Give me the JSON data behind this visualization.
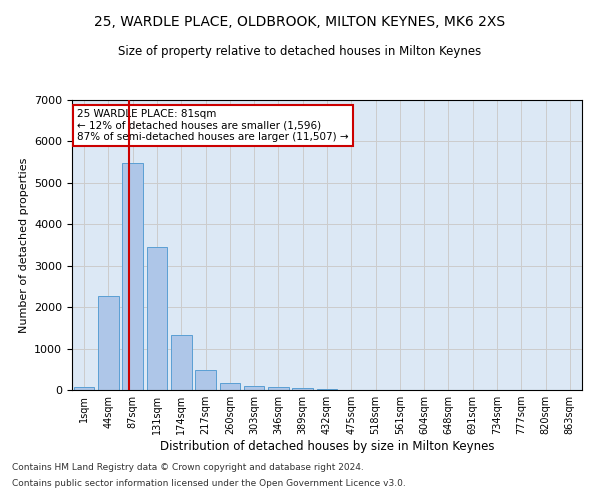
{
  "title1": "25, WARDLE PLACE, OLDBROOK, MILTON KEYNES, MK6 2XS",
  "title2": "Size of property relative to detached houses in Milton Keynes",
  "xlabel": "Distribution of detached houses by size in Milton Keynes",
  "ylabel": "Number of detached properties",
  "footnote1": "Contains HM Land Registry data © Crown copyright and database right 2024.",
  "footnote2": "Contains public sector information licensed under the Open Government Licence v3.0.",
  "annotation_title": "25 WARDLE PLACE: 81sqm",
  "annotation_line1": "← 12% of detached houses are smaller (1,596)",
  "annotation_line2": "87% of semi-detached houses are larger (11,507) →",
  "bar_labels": [
    "1sqm",
    "44sqm",
    "87sqm",
    "131sqm",
    "174sqm",
    "217sqm",
    "260sqm",
    "303sqm",
    "346sqm",
    "389sqm",
    "432sqm",
    "475sqm",
    "518sqm",
    "561sqm",
    "604sqm",
    "648sqm",
    "691sqm",
    "734sqm",
    "777sqm",
    "820sqm",
    "863sqm"
  ],
  "bar_values": [
    75,
    2280,
    5480,
    3450,
    1320,
    480,
    160,
    100,
    75,
    50,
    20,
    10,
    5,
    3,
    2,
    1,
    1,
    0,
    0,
    0,
    0
  ],
  "bar_color": "#aec6e8",
  "bar_edge_color": "#5a9fd4",
  "vline_color": "#cc0000",
  "vline_x": 1.85,
  "annotation_box_color": "#ffffff",
  "annotation_box_edge": "#cc0000",
  "grid_color": "#cccccc",
  "bg_color": "#dce8f5",
  "ylim": [
    0,
    7000
  ],
  "yticks": [
    0,
    1000,
    2000,
    3000,
    4000,
    5000,
    6000,
    7000
  ]
}
